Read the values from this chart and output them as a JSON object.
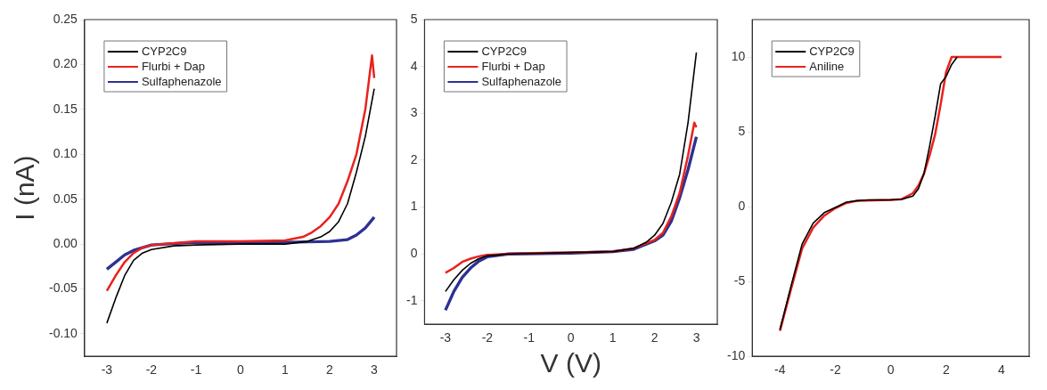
{
  "chart_data": [
    {
      "type": "line",
      "ylabel": "I (nA)",
      "xlim": [
        -3.5,
        3.5
      ],
      "xticks": [
        -3,
        -2,
        -1,
        0,
        1,
        2,
        3
      ],
      "ylim": [
        -0.125,
        0.25
      ],
      "yticks": [
        {
          "value": -0.1,
          "label": "-0.10"
        },
        {
          "value": -0.05,
          "label": "-0.05"
        },
        {
          "value": 0,
          "label": "0.00"
        },
        {
          "value": 0.05,
          "label": "0.05"
        },
        {
          "value": 0.1,
          "label": "0.10"
        },
        {
          "value": 0.15,
          "label": "0.15"
        },
        {
          "value": 0.2,
          "label": "0.20"
        },
        {
          "value": 0.25,
          "label": "0.25"
        }
      ],
      "grid": false,
      "legend": "top left",
      "marker": "none",
      "line_style": "solid",
      "series": [
        {
          "name": "CYP2C9",
          "color": "#000000",
          "x": [
            -3,
            -2.8,
            -2.6,
            -2.4,
            -2.2,
            -2,
            -1.5,
            -1,
            0,
            1,
            1.5,
            1.8,
            2,
            2.2,
            2.4,
            2.6,
            2.8,
            3
          ],
          "values": [
            -0.088,
            -0.06,
            -0.035,
            -0.018,
            -0.01,
            -0.006,
            -0.002,
            -0.001,
            0,
            0,
            0.003,
            0.008,
            0.014,
            0.025,
            0.045,
            0.08,
            0.12,
            0.173
          ]
        },
        {
          "name": "Flurbi + Dap",
          "color": "#e8221e",
          "x": [
            -3,
            -2.8,
            -2.6,
            -2.4,
            -2.2,
            -2,
            -1,
            0,
            1,
            1.4,
            1.6,
            1.8,
            2,
            2.2,
            2.4,
            2.6,
            2.8,
            2.95,
            3
          ],
          "values": [
            -0.052,
            -0.035,
            -0.02,
            -0.01,
            -0.004,
            -0.001,
            0.003,
            0.003,
            0.004,
            0.008,
            0.013,
            0.02,
            0.03,
            0.045,
            0.07,
            0.1,
            0.15,
            0.21,
            0.185
          ]
        },
        {
          "name": "Sulfaphenazole",
          "color": "#2e3192",
          "x": [
            -3,
            -2.8,
            -2.6,
            -2.4,
            -2.2,
            -2,
            -1,
            0,
            1,
            2,
            2.4,
            2.6,
            2.8,
            3
          ],
          "values": [
            -0.028,
            -0.02,
            -0.012,
            -0.007,
            -0.004,
            -0.001,
            0.002,
            0.001,
            0.002,
            0.003,
            0.005,
            0.01,
            0.018,
            0.03
          ]
        }
      ]
    },
    {
      "type": "line",
      "xlabel": "V (V)",
      "xlim": [
        -3.5,
        3.5
      ],
      "xticks": [
        -3,
        -2,
        -1,
        0,
        1,
        2,
        3
      ],
      "ylim": [
        -1.5,
        5
      ],
      "yticks": [
        -1,
        0,
        1,
        2,
        3,
        4,
        5
      ],
      "grid": false,
      "legend": "top left",
      "marker": "none",
      "line_style": "solid",
      "series": [
        {
          "name": "CYP2C9",
          "color": "#000000",
          "x": [
            -3,
            -2.8,
            -2.6,
            -2.4,
            -2.2,
            -2,
            -1.5,
            0,
            1,
            1.5,
            1.8,
            2,
            2.2,
            2.4,
            2.6,
            2.8,
            3
          ],
          "values": [
            -0.8,
            -0.55,
            -0.35,
            -0.2,
            -0.1,
            -0.04,
            0,
            0.03,
            0.05,
            0.12,
            0.25,
            0.4,
            0.65,
            1.1,
            1.7,
            2.8,
            4.3
          ]
        },
        {
          "name": "Flurbi + Dap",
          "color": "#e8221e",
          "x": [
            -3,
            -2.8,
            -2.6,
            -2.4,
            -2.2,
            -2,
            -1,
            0,
            1,
            1.5,
            2,
            2.2,
            2.4,
            2.6,
            2.8,
            2.95,
            3
          ],
          "values": [
            -0.4,
            -0.3,
            -0.17,
            -0.1,
            -0.05,
            -0.02,
            0.02,
            0.03,
            0.05,
            0.12,
            0.3,
            0.45,
            0.8,
            1.3,
            2.1,
            2.8,
            2.7
          ]
        },
        {
          "name": "Sulfaphenazole",
          "color": "#2e3192",
          "x": [
            -3,
            -2.8,
            -2.6,
            -2.4,
            -2.2,
            -2,
            -1.5,
            0,
            1,
            1.5,
            2,
            2.2,
            2.4,
            2.6,
            2.8,
            3
          ],
          "values": [
            -1.2,
            -0.8,
            -0.5,
            -0.3,
            -0.15,
            -0.06,
            0,
            0.02,
            0.05,
            0.1,
            0.28,
            0.4,
            0.7,
            1.2,
            1.8,
            2.5
          ]
        }
      ]
    },
    {
      "type": "line",
      "xlim": [
        -5,
        5
      ],
      "xticks": [
        -4,
        -2,
        0,
        2,
        4
      ],
      "ylim": [
        -10,
        12.5
      ],
      "yticks": [
        -10,
        -5,
        0,
        5,
        10
      ],
      "grid": false,
      "legend": "top left",
      "marker": "none",
      "line_style": "solid",
      "series": [
        {
          "name": "CYP2C9",
          "color": "#000000",
          "x": [
            -4,
            -3.6,
            -3.2,
            -2.8,
            -2.4,
            -2,
            -1.6,
            -1.2,
            -0.8,
            0,
            0.4,
            0.8,
            1,
            1.2,
            1.4,
            1.6,
            1.8,
            2,
            2.2,
            2.4
          ],
          "values": [
            -8.2,
            -5.3,
            -2.5,
            -1.1,
            -0.4,
            -0.05,
            0.3,
            0.4,
            0.45,
            0.45,
            0.5,
            0.7,
            1.2,
            2.2,
            4,
            6,
            8.2,
            8.7,
            9.5,
            10
          ]
        },
        {
          "name": "Aniline",
          "color": "#e8221e",
          "x": [
            -4,
            -3.6,
            -3.2,
            -2.8,
            -2.4,
            -2,
            -1.6,
            -1.2,
            0,
            0.4,
            0.8,
            1,
            1.2,
            1.4,
            1.6,
            1.8,
            2,
            2.2,
            4
          ],
          "values": [
            -8.3,
            -5.5,
            -2.8,
            -1.4,
            -0.6,
            -0.1,
            0.25,
            0.4,
            0.45,
            0.5,
            0.9,
            1.4,
            2.2,
            3.4,
            4.8,
            6.8,
            9,
            10,
            10
          ]
        }
      ]
    }
  ]
}
